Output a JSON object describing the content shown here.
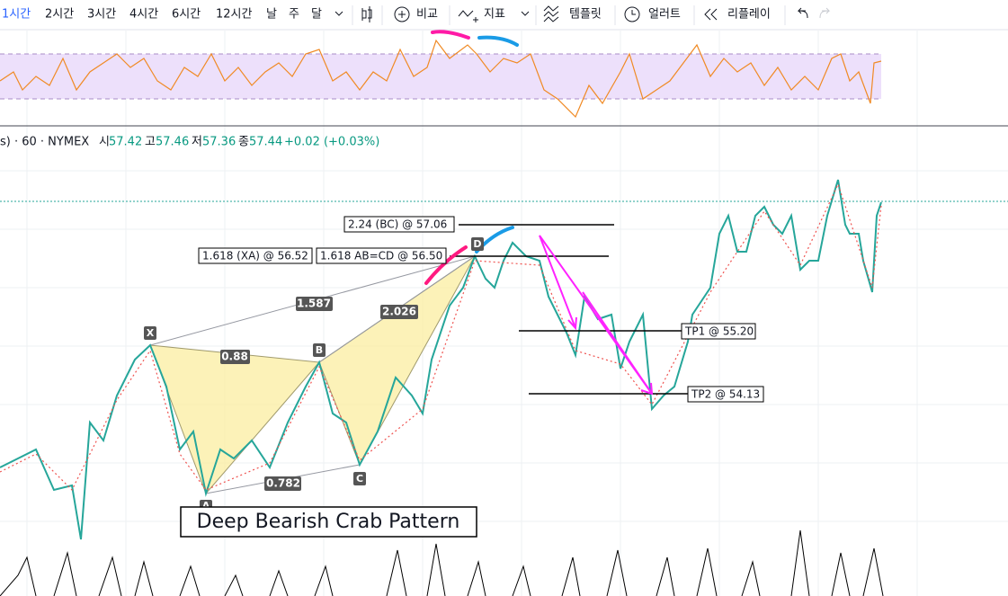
{
  "toolbar": {
    "intervals": [
      "1시간",
      "2시간",
      "3시간",
      "4시간",
      "6시간",
      "12시간",
      "날",
      "주",
      "달"
    ],
    "buttons": [
      "비교",
      "지표",
      "템플릿",
      "얼러트",
      "리플레이"
    ]
  },
  "legend": {
    "symbol": "s) · 60 · NYMEX",
    "ohlc": [
      {
        "label": "시",
        "value": "57.42"
      },
      {
        "label": "고",
        "value": "57.46"
      },
      {
        "label": "저",
        "value": "57.36"
      },
      {
        "label": "종",
        "value": "57.44"
      }
    ],
    "change": "+0.02 (+0.03%)"
  },
  "pattern": {
    "title": "Deep Bearish Crab Pattern",
    "points": [
      "X",
      "A",
      "B",
      "C",
      "D"
    ],
    "ratios": [
      "1.587",
      "0.88",
      "2.026",
      "0.782"
    ],
    "levels": [
      "2.24 (BC) @ 57.06",
      "1.618 (XA) @ 56.52",
      "1.618 AB=CD @ 56.50",
      "TP1 @ 55.20",
      "TP2 @ 54.13"
    ]
  }
}
